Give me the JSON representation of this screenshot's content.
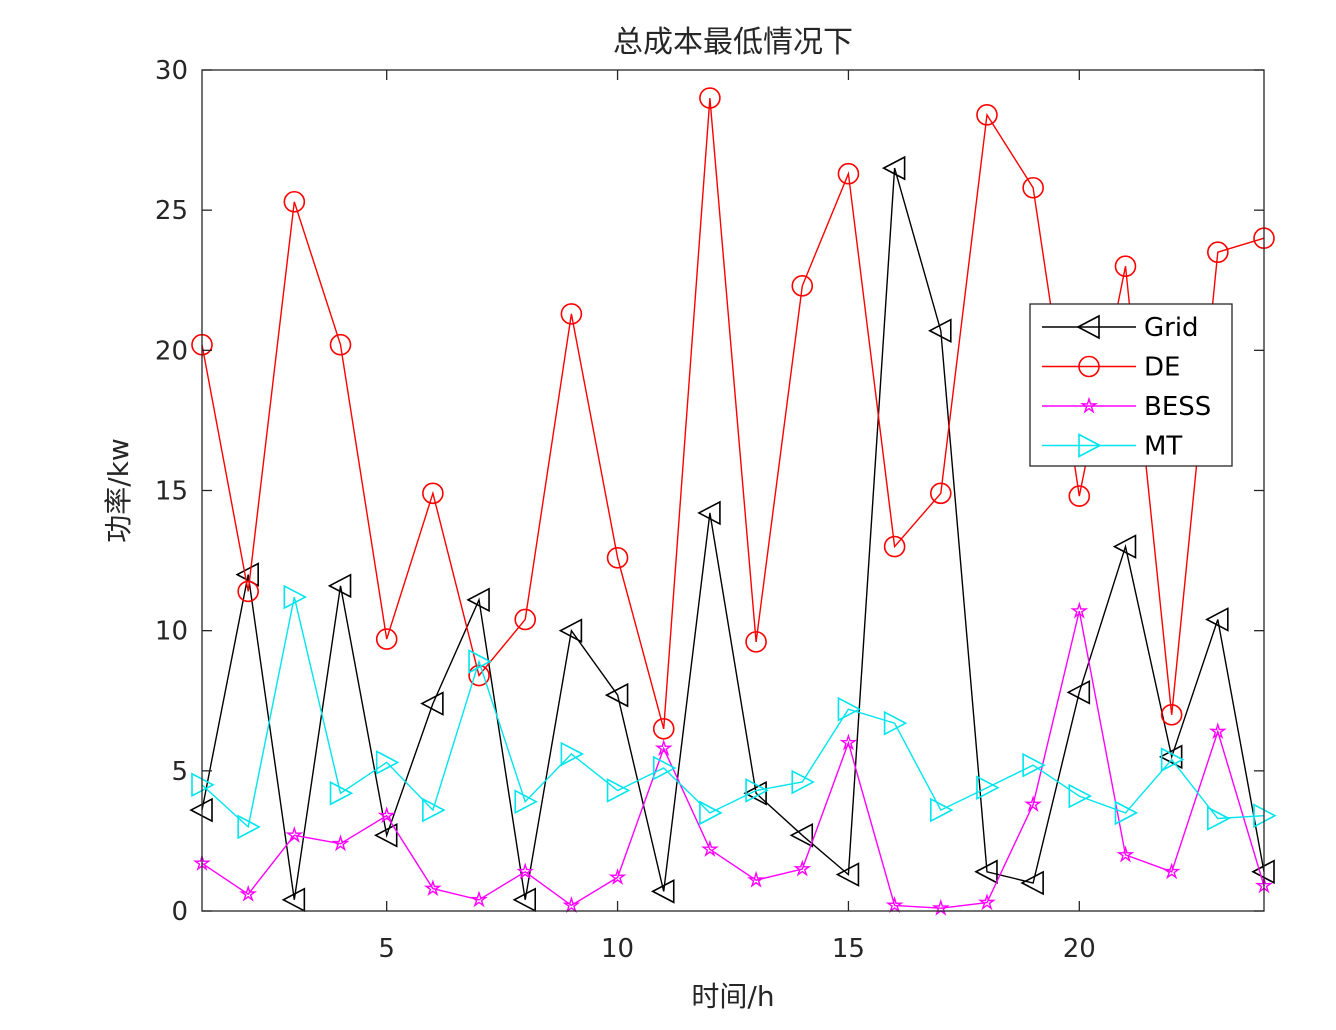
{
  "chart_data": {
    "type": "line",
    "title": "总成本最低情况下",
    "xlabel": "时间/h",
    "ylabel": "功率/kw",
    "xlim": [
      1,
      24
    ],
    "ylim": [
      0,
      30
    ],
    "xticks": [
      5,
      10,
      15,
      20
    ],
    "yticks": [
      0,
      5,
      10,
      15,
      20,
      25,
      30
    ],
    "grid": false,
    "legend_position": "right",
    "x": [
      1,
      2,
      3,
      4,
      5,
      6,
      7,
      8,
      9,
      10,
      11,
      12,
      13,
      14,
      15,
      16,
      17,
      18,
      19,
      20,
      21,
      22,
      23,
      24
    ],
    "series": [
      {
        "name": "Grid",
        "color": "#000000",
        "marker": "triangle-left",
        "values": [
          3.6,
          12.0,
          0.4,
          11.6,
          2.7,
          7.4,
          11.1,
          0.4,
          10.0,
          7.7,
          0.7,
          14.2,
          4.2,
          2.7,
          1.3,
          26.5,
          20.7,
          1.4,
          1.0,
          7.8,
          13.0,
          5.5,
          10.4,
          1.4
        ]
      },
      {
        "name": "DE",
        "color": "#ff0000",
        "marker": "circle",
        "values": [
          20.2,
          11.4,
          25.3,
          20.2,
          9.7,
          14.9,
          8.4,
          10.4,
          21.3,
          12.6,
          6.5,
          29.0,
          9.6,
          22.3,
          26.3,
          13.0,
          14.9,
          28.4,
          25.8,
          14.8,
          23.0,
          7.0,
          23.5,
          24.0
        ]
      },
      {
        "name": "BESS",
        "color": "#ff00ff",
        "marker": "star",
        "values": [
          1.7,
          0.6,
          2.7,
          2.4,
          3.4,
          0.8,
          0.4,
          1.4,
          0.2,
          1.2,
          5.8,
          2.2,
          1.1,
          1.5,
          6.0,
          0.2,
          0.1,
          0.3,
          3.8,
          10.7,
          2.0,
          1.4,
          6.4,
          0.9
        ]
      },
      {
        "name": "MT",
        "color": "#00e5ee",
        "marker": "triangle-right",
        "values": [
          4.5,
          3.0,
          11.2,
          4.2,
          5.3,
          3.6,
          8.9,
          3.9,
          5.6,
          4.3,
          5.1,
          3.5,
          4.3,
          4.6,
          7.2,
          6.7,
          3.6,
          4.4,
          5.2,
          4.1,
          3.5,
          5.4,
          3.3,
          3.4
        ]
      }
    ]
  }
}
